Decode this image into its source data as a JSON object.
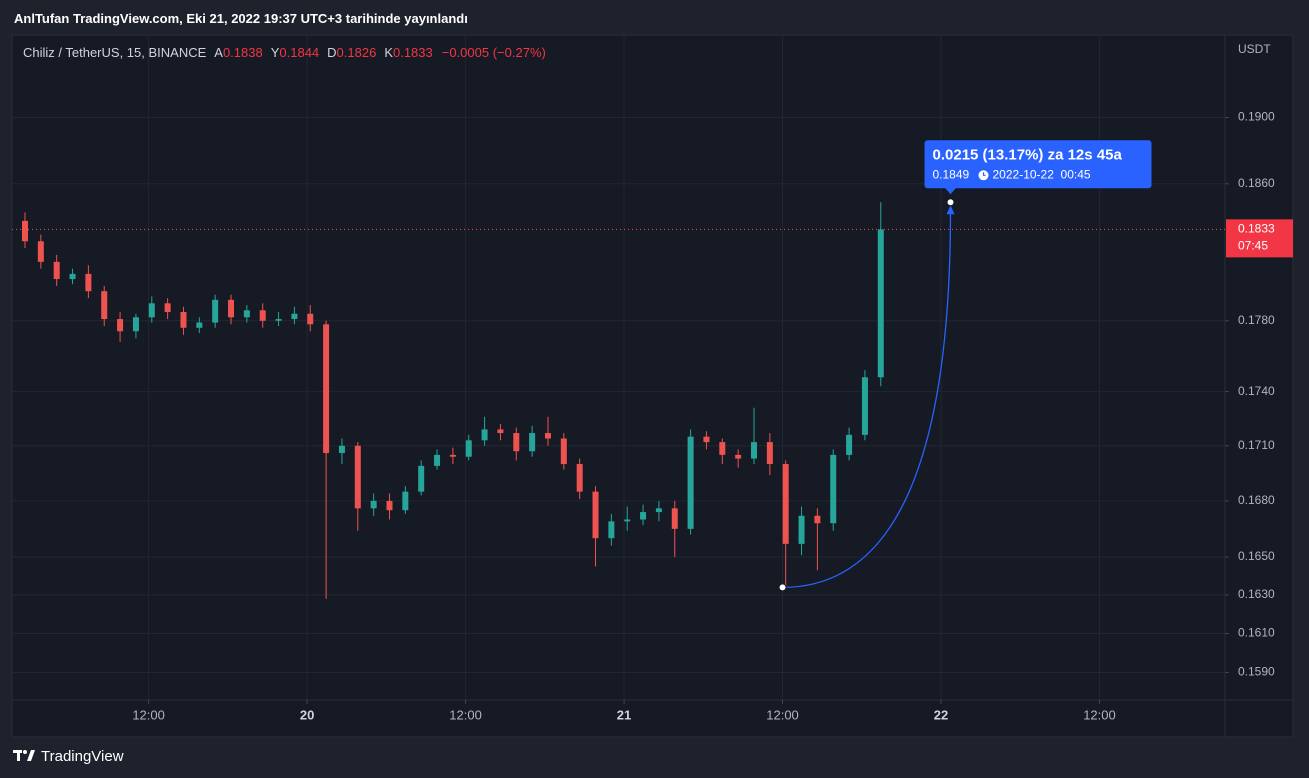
{
  "header": {
    "title": "AnlTufan TradingView.com, Eki 21, 2022 19:37 UTC+3 tarihinde yayınlandı"
  },
  "chart_data": {
    "type": "candlestick",
    "symbol": "Chiliz / TetherUS, 15, BINANCE",
    "ohlc_legend": [
      {
        "name": "A",
        "value": 0.1838
      },
      {
        "name": "Y",
        "value": 0.1844
      },
      {
        "name": "D",
        "value": 0.1826
      },
      {
        "name": "K",
        "value": 0.1833
      }
    ],
    "change": "−0.0005 (−0.27%)",
    "y_axis_unit": "USDT",
    "x": [
      19.11,
      19.16,
      19.21,
      19.26,
      19.31,
      19.36,
      19.41,
      19.46,
      19.51,
      19.56,
      19.61,
      19.66,
      19.71,
      19.76,
      19.81,
      19.86,
      19.91,
      19.96,
      20.01,
      20.06,
      20.11,
      20.16,
      20.21,
      20.26,
      20.31,
      20.36,
      20.41,
      20.46,
      20.51,
      20.56,
      20.61,
      20.66,
      20.71,
      20.76,
      20.81,
      20.86,
      20.91,
      20.96,
      21.01,
      21.06,
      21.11,
      21.16,
      21.21,
      21.26,
      21.31,
      21.36,
      21.41,
      21.46,
      21.51,
      21.56,
      21.61,
      21.66,
      21.71,
      21.76,
      21.81
    ],
    "open": [
      0.1838,
      0.1826,
      0.1814,
      0.1804,
      0.1807,
      0.1797,
      0.1781,
      0.1774,
      0.1782,
      0.179,
      0.1785,
      0.1776,
      0.1779,
      0.1792,
      0.1782,
      0.1786,
      0.178,
      0.1781,
      0.1784,
      0.1778,
      0.1706,
      0.171,
      0.1676,
      0.168,
      0.1675,
      0.1685,
      0.1699,
      0.1705,
      0.1704,
      0.1713,
      0.1719,
      0.1717,
      0.1707,
      0.1717,
      0.1714,
      0.17,
      0.1685,
      0.166,
      0.1669,
      0.167,
      0.1674,
      0.1676,
      0.1665,
      0.1715,
      0.1712,
      0.1705,
      0.1703,
      0.1712,
      0.17,
      0.1657,
      0.1672,
      0.1668,
      0.1705,
      0.1716,
      0.1748
    ],
    "high": [
      0.1843,
      0.183,
      0.1818,
      0.181,
      0.1812,
      0.18,
      0.1785,
      0.1784,
      0.1794,
      0.1793,
      0.1788,
      0.1782,
      0.1795,
      0.1795,
      0.1789,
      0.179,
      0.1785,
      0.1788,
      0.1789,
      0.178,
      0.1714,
      0.1712,
      0.1684,
      0.1684,
      0.1688,
      0.1702,
      0.1708,
      0.1709,
      0.1716,
      0.1726,
      0.1722,
      0.172,
      0.1721,
      0.1726,
      0.1717,
      0.1703,
      0.1688,
      0.1673,
      0.1677,
      0.1678,
      0.168,
      0.168,
      0.1719,
      0.1718,
      0.1714,
      0.1708,
      0.1731,
      0.1717,
      0.1702,
      0.1677,
      0.1676,
      0.1708,
      0.172,
      0.1752,
      0.1849
    ],
    "low": [
      0.1822,
      0.181,
      0.18,
      0.1801,
      0.1793,
      0.1777,
      0.1768,
      0.177,
      0.1779,
      0.1781,
      0.1772,
      0.1773,
      0.1776,
      0.1778,
      0.1779,
      0.1776,
      0.1777,
      0.1778,
      0.1774,
      0.1628,
      0.17,
      0.1664,
      0.1672,
      0.167,
      0.1673,
      0.1683,
      0.1697,
      0.17,
      0.1702,
      0.171,
      0.1713,
      0.1702,
      0.1704,
      0.171,
      0.1697,
      0.1681,
      0.1645,
      0.1656,
      0.1664,
      0.1667,
      0.1669,
      0.165,
      0.1662,
      0.1708,
      0.17,
      0.1698,
      0.17,
      0.1694,
      0.1634,
      0.1651,
      0.1643,
      0.1664,
      0.1702,
      0.1713,
      0.1743
    ],
    "close": [
      0.1826,
      0.1814,
      0.1804,
      0.1807,
      0.1797,
      0.1781,
      0.1774,
      0.1782,
      0.179,
      0.1785,
      0.1776,
      0.1779,
      0.1792,
      0.1782,
      0.1786,
      0.178,
      0.1781,
      0.1784,
      0.1778,
      0.1706,
      0.171,
      0.1676,
      0.168,
      0.1675,
      0.1685,
      0.1699,
      0.1705,
      0.1704,
      0.1713,
      0.1719,
      0.1717,
      0.1707,
      0.1717,
      0.1714,
      0.17,
      0.1685,
      0.166,
      0.1669,
      0.167,
      0.1674,
      0.1676,
      0.1665,
      0.1715,
      0.1712,
      0.1705,
      0.1703,
      0.1712,
      0.17,
      0.1657,
      0.1672,
      0.1668,
      0.1705,
      0.1716,
      0.1748,
      0.1833
    ],
    "up_color": "#26a69a",
    "down_color": "#ef5350",
    "xlim": [
      19.069,
      22.896
    ],
    "xticks": [
      {
        "value": 19.5,
        "label": "12:00"
      },
      20,
      {
        "value": 20.5,
        "label": "12:00"
      },
      21,
      {
        "value": 21.5,
        "label": "12:00"
      },
      22,
      {
        "value": 22.5,
        "label": "12:00"
      }
    ],
    "ylim": [
      0.1576,
      0.1951
    ],
    "yticks": [
      {
        "value": 0.19,
        "label": "0.1900"
      },
      {
        "value": 0.186,
        "label": "0.1860"
      },
      {
        "value": 0.178,
        "label": "0.1780"
      },
      {
        "value": 0.174,
        "label": "0.1740"
      },
      {
        "value": 0.171,
        "label": "0.1710"
      },
      {
        "value": 0.168,
        "label": "0.1680"
      },
      {
        "value": 0.165,
        "label": "0.1650"
      },
      {
        "value": 0.163,
        "label": "0.1630"
      },
      {
        "value": 0.161,
        "label": "0.1610"
      },
      {
        "value": 0.159,
        "label": "0.1590"
      }
    ],
    "log_scale": true,
    "grid": true,
    "last_price_countdown": "07:45",
    "measure": {
      "from": {
        "x": 21.5,
        "y": 0.1634
      },
      "to": {
        "x": 22.03,
        "y": 0.1849
      },
      "label": "0.0215 (13.17%) za 12s 45a",
      "time": "2022-10-22  00:45",
      "color": "#2962ff"
    }
  },
  "footer": {
    "brand": "TradingView"
  }
}
